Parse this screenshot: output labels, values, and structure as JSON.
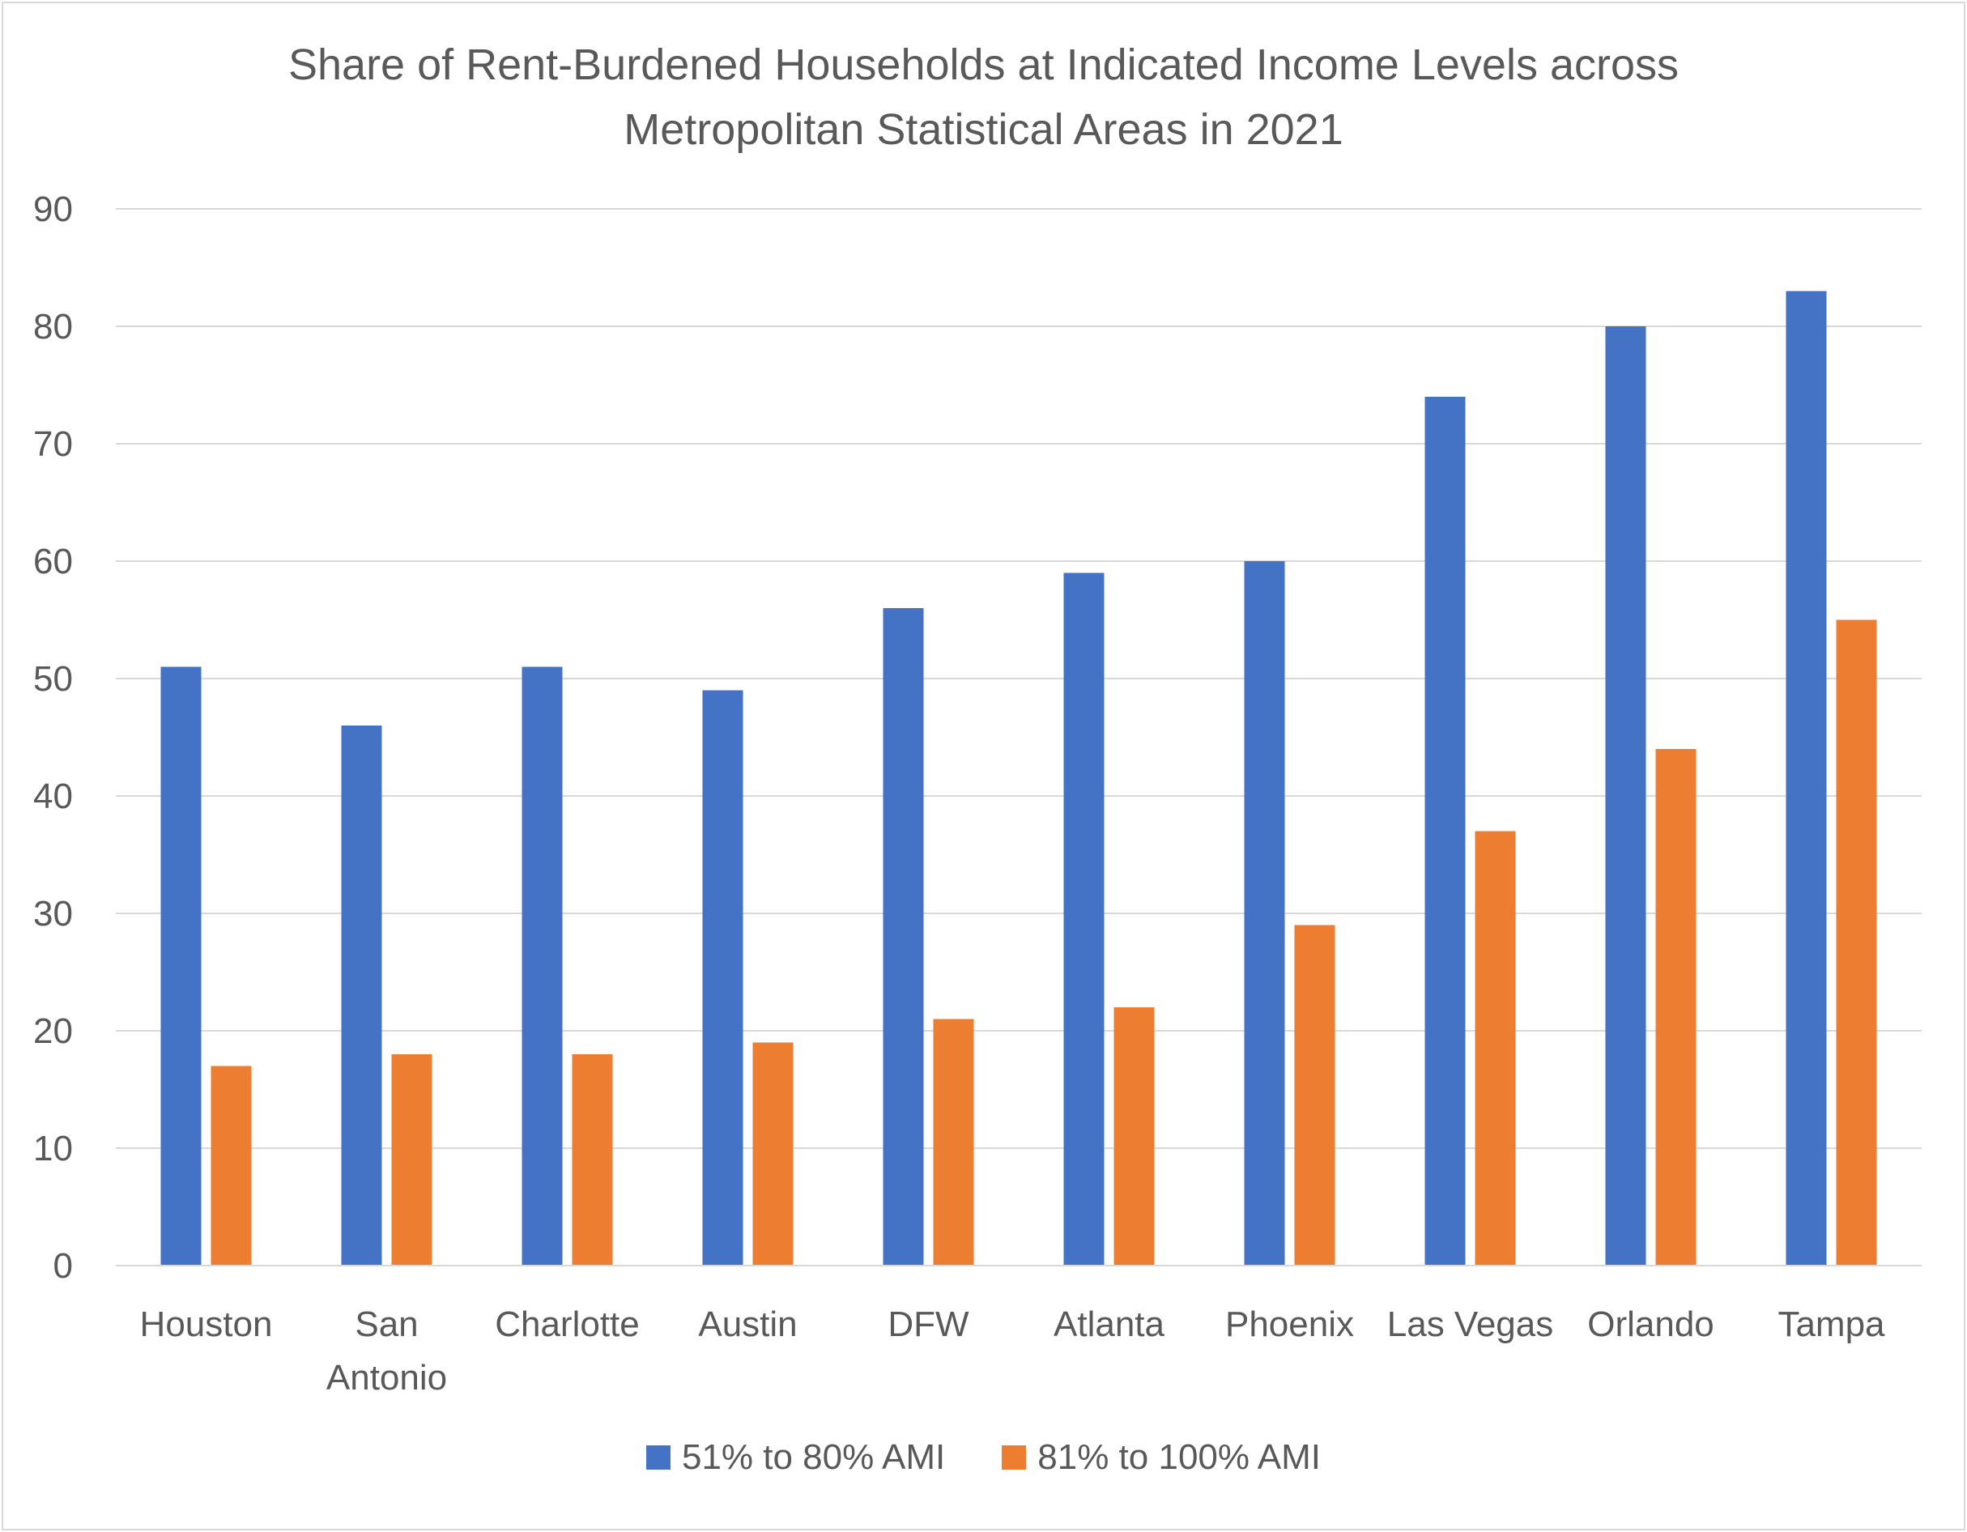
{
  "chart_data": {
    "type": "bar",
    "title_lines": [
      "Share of Rent-Burdened Households at Indicated Income Levels across",
      "Metropolitan Statistical Areas in 2021"
    ],
    "categories": [
      "Houston",
      "San Antonio",
      "Charlotte",
      "Austin",
      "DFW",
      "Atlanta",
      "Phoenix",
      "Las Vegas",
      "Orlando",
      "Tampa"
    ],
    "category_label_lines": [
      [
        "Houston"
      ],
      [
        "San",
        "Antonio"
      ],
      [
        "Charlotte"
      ],
      [
        "Austin"
      ],
      [
        "DFW"
      ],
      [
        "Atlanta"
      ],
      [
        "Phoenix"
      ],
      [
        "Las Vegas"
      ],
      [
        "Orlando"
      ],
      [
        "Tampa"
      ]
    ],
    "series": [
      {
        "name": "51% to 80% AMI",
        "color": "#4472c4",
        "values": [
          51,
          46,
          51,
          49,
          56,
          59,
          60,
          74,
          80,
          83
        ]
      },
      {
        "name": "81% to 100% AMI",
        "color": "#ed7d31",
        "values": [
          17,
          18,
          18,
          19,
          21,
          22,
          29,
          37,
          44,
          55
        ]
      }
    ],
    "ylim": [
      0,
      90
    ],
    "yticks": [
      "0",
      "10",
      "20",
      "30",
      "40",
      "50",
      "60",
      "70",
      "80",
      "90"
    ],
    "xlabel": "",
    "ylabel": "",
    "grid": true,
    "legend_position": "bottom"
  }
}
